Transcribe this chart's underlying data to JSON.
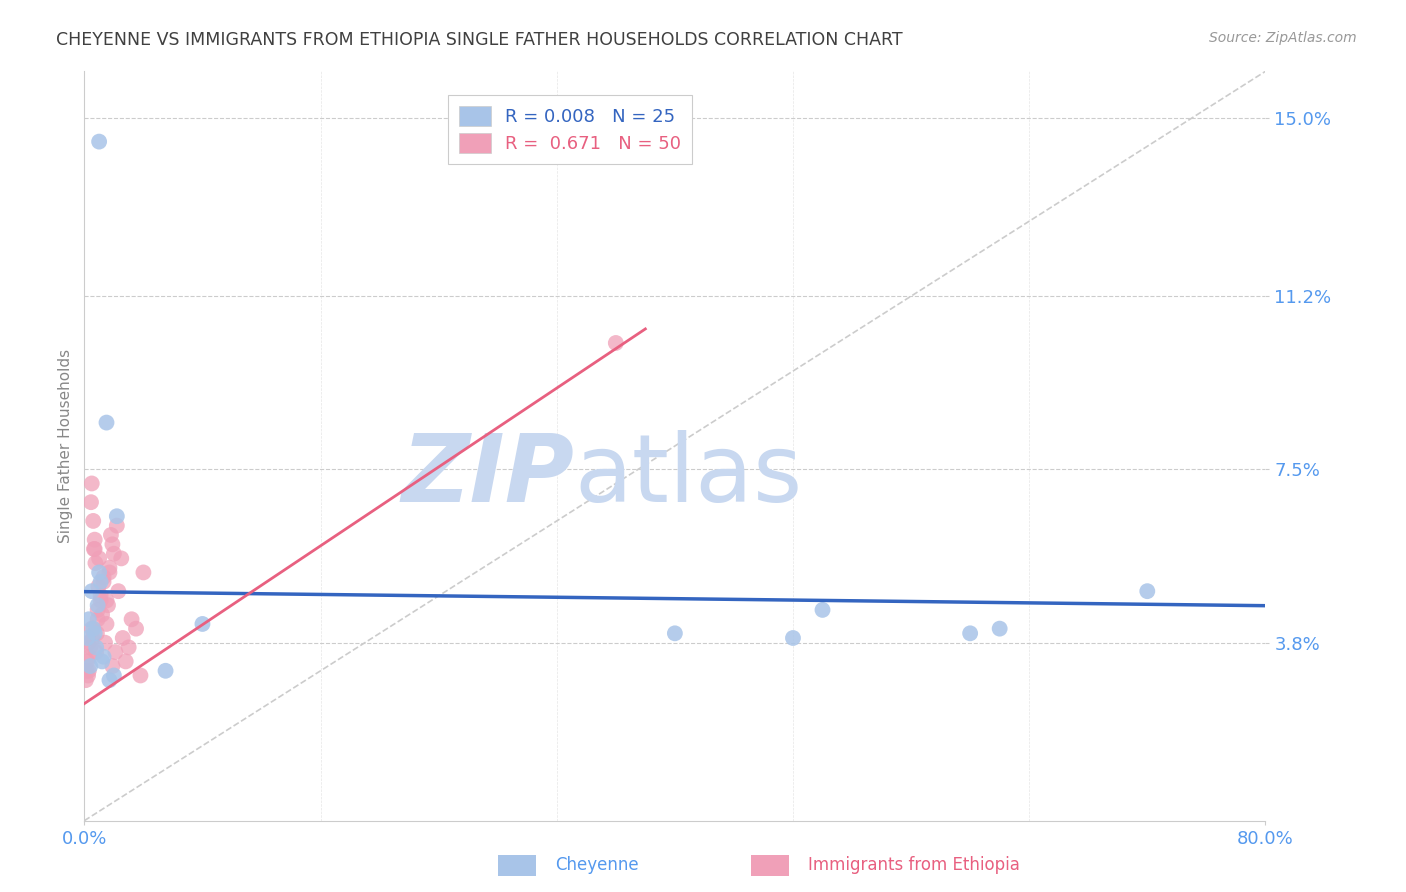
{
  "title": "CHEYENNE VS IMMIGRANTS FROM ETHIOPIA SINGLE FATHER HOUSEHOLDS CORRELATION CHART",
  "source": "Source: ZipAtlas.com",
  "ylabel": "Single Father Households",
  "xlim": [
    0.0,
    80.0
  ],
  "ylim": [
    0.0,
    16.0
  ],
  "yticks": [
    3.8,
    7.5,
    11.2,
    15.0
  ],
  "ytick_labels": [
    "3.8%",
    "7.5%",
    "11.2%",
    "15.0%"
  ],
  "xtick_labels": [
    "0.0%",
    "80.0%"
  ],
  "cheyenne_color": "#a8c4e8",
  "ethiopia_color": "#f0a0b8",
  "cheyenne_line_color": "#3465c0",
  "ethiopia_line_color": "#e86080",
  "watermark_zip_color": "#c8d8f0",
  "watermark_atlas_color": "#c8d8f0",
  "grid_color": "#cccccc",
  "title_color": "#404040",
  "axis_tick_color": "#5599ee",
  "axis_label_color": "#888888",
  "source_color": "#999999",
  "diag_color": "#cccccc",
  "cheyenne_x": [
    1.0,
    1.5,
    2.2,
    0.3,
    0.5,
    0.7,
    0.9,
    1.1,
    1.3,
    0.4,
    0.6,
    0.8,
    1.0,
    1.7,
    0.2,
    1.2,
    2.0,
    5.5,
    8.0,
    60.0,
    62.0,
    72.0,
    40.0,
    50.0,
    48.0
  ],
  "cheyenne_y": [
    14.5,
    8.5,
    6.5,
    4.3,
    4.9,
    4.0,
    4.6,
    5.1,
    3.5,
    3.3,
    4.1,
    3.7,
    5.3,
    3.0,
    3.9,
    3.4,
    3.1,
    3.2,
    4.2,
    4.0,
    4.1,
    4.9,
    4.0,
    4.5,
    3.9
  ],
  "ethiopia_x": [
    0.1,
    0.15,
    0.2,
    0.25,
    0.3,
    0.35,
    0.4,
    0.45,
    0.5,
    0.55,
    0.6,
    0.65,
    0.7,
    0.75,
    0.8,
    0.85,
    0.9,
    0.95,
    1.0,
    1.1,
    1.2,
    1.3,
    1.4,
    1.5,
    1.6,
    1.7,
    1.8,
    1.9,
    2.0,
    2.2,
    2.5,
    2.8,
    3.0,
    3.5,
    4.0,
    0.3,
    0.5,
    0.7,
    0.9,
    1.1,
    1.3,
    1.5,
    1.7,
    1.9,
    2.1,
    2.3,
    2.6,
    3.2,
    3.8,
    36.0
  ],
  "ethiopia_y": [
    3.0,
    3.2,
    3.4,
    3.1,
    3.8,
    3.5,
    3.7,
    6.8,
    7.2,
    3.9,
    6.4,
    5.8,
    6.0,
    5.5,
    3.6,
    4.0,
    4.3,
    5.0,
    5.6,
    4.7,
    4.4,
    5.1,
    3.8,
    4.2,
    4.6,
    5.3,
    6.1,
    5.9,
    5.7,
    6.3,
    5.6,
    3.4,
    3.7,
    4.1,
    5.3,
    3.2,
    4.1,
    5.8,
    4.5,
    4.8,
    5.2,
    4.7,
    5.4,
    3.3,
    3.6,
    4.9,
    3.9,
    4.3,
    3.1,
    10.2
  ]
}
